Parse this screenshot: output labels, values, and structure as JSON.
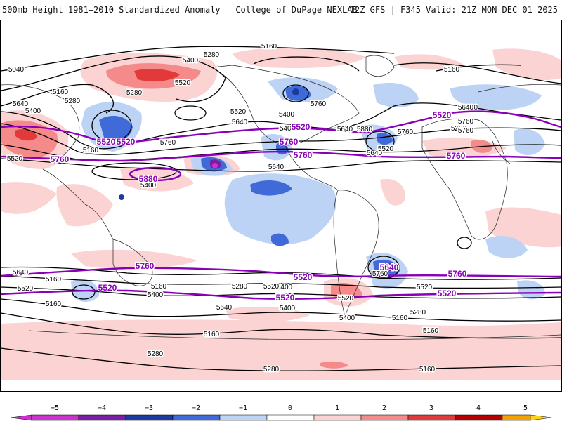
{
  "header": {
    "title": "500mb Height 1981–2010 Standardized Anomaly | College of DuPage NEXLAB",
    "run_info": "12Z GFS | F345 Valid: 21Z MON DEC 01 2025"
  },
  "colors": {
    "neg5": "#cc33cc",
    "neg4": "#7a1fa3",
    "neg3": "#1c3aa0",
    "neg2": "#3f6ad8",
    "neg1": "#bcd3f5",
    "zero": "#ffffff",
    "pos1": "#fbd3d3",
    "pos2": "#f48a8a",
    "pos3": "#e23a3a",
    "pos4": "#b80000",
    "pos5": "#f2a100",
    "pos5b": "#ffd21a",
    "contour": "#000000",
    "highlight_contour": "#8a00b8",
    "coast": "#222222"
  },
  "colorbar": {
    "ticks": [
      "−5",
      "−4",
      "−3",
      "−2",
      "−1",
      "0",
      "1",
      "2",
      "3",
      "4",
      "5"
    ]
  },
  "contour_labels": {
    "black": [
      "5160",
      "5040",
      "5280",
      "5400",
      "5160",
      "5280",
      "5520",
      "5640",
      "5160",
      "5280",
      "5400",
      "5520",
      "5640",
      "5400",
      "5760",
      "5640",
      "5880",
      "5760",
      "5400",
      "5160",
      "5280",
      "5520",
      "5400",
      "5640",
      "5760",
      "5280",
      "5640",
      "5760",
      "5640",
      "5520",
      "5160",
      "5280",
      "5400",
      "5640",
      "5520",
      "5760",
      "5520",
      "5400",
      "5280",
      "5160",
      "5160",
      "5160",
      "5280",
      "5280",
      "5160",
      "5400",
      "5640",
      "5520",
      "5160",
      "5400",
      "5640",
      "5760",
      "5520",
      "5160"
    ],
    "purple": [
      "5520",
      "5760",
      "5520",
      "5880",
      "5520",
      "5760",
      "5520",
      "5760",
      "5760",
      "5520",
      "5520",
      "5760",
      "5520",
      "5520",
      "5760",
      "5640"
    ]
  }
}
